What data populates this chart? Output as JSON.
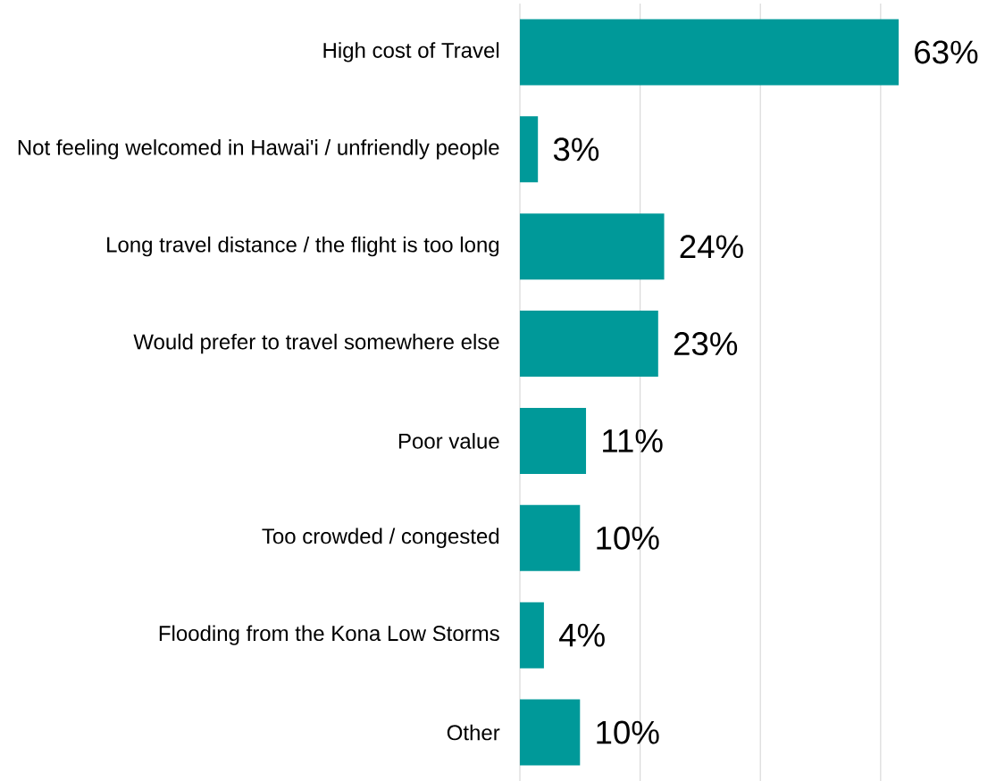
{
  "chart_data": {
    "type": "bar",
    "orientation": "horizontal",
    "categories": [
      "High cost of Travel",
      "Not feeling welcomed in Hawai'i / unfriendly people",
      "Long travel distance / the flight is too long",
      "Would prefer to travel somewhere else",
      "Poor value",
      "Too crowded / congested",
      "Flooding from the Kona Low Storms",
      "Other"
    ],
    "values": [
      63,
      3,
      24,
      23,
      11,
      10,
      4,
      10
    ],
    "value_labels": [
      "63%",
      "3%",
      "24%",
      "23%",
      "11%",
      "10%",
      "4%",
      "10%"
    ],
    "color": "#009999",
    "xticks": [
      {
        "value": 0,
        "label": null
      },
      {
        "value": 20,
        "label": null
      },
      {
        "value": 40,
        "label": null
      },
      {
        "value": 60,
        "label": null
      }
    ],
    "grid": "x",
    "tick_labels": "y"
  }
}
